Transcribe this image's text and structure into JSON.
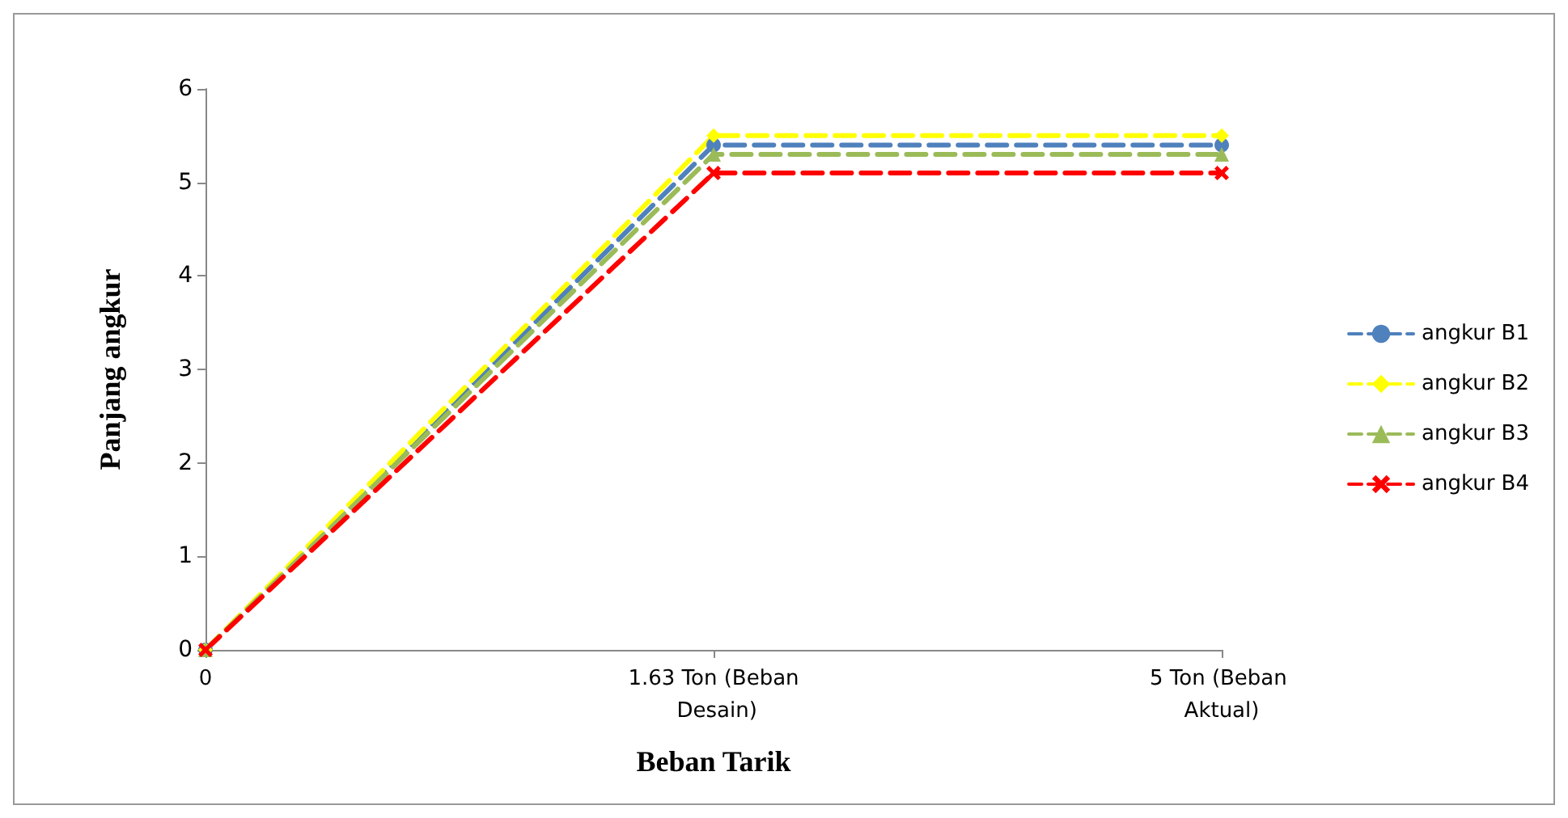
{
  "chart_data": {
    "type": "line",
    "xlabel": "Beban Tarik",
    "ylabel": "Panjang angkur",
    "categories": [
      "0",
      "1.63 Ton (Beban Desain)",
      "5 Ton (Beban Aktual)"
    ],
    "series": [
      {
        "name": "angkur B1",
        "color": "#4f81bd",
        "values": [
          0,
          5.4,
          5.4
        ],
        "marker": "circle"
      },
      {
        "name": "angkur B2",
        "color": "#ffff00",
        "values": [
          0,
          5.5,
          5.5
        ],
        "marker": "diamond"
      },
      {
        "name": "angkur B3",
        "color": "#9bbb59",
        "values": [
          0,
          5.3,
          5.3
        ],
        "marker": "triangle"
      },
      {
        "name": "angkur B4",
        "color": "#ff0000",
        "values": [
          0,
          5.1,
          5.1
        ],
        "marker": "cross"
      }
    ],
    "ylim": [
      0,
      6
    ],
    "yticks": [
      0,
      1,
      2,
      3,
      4,
      5,
      6
    ],
    "grid": false,
    "legend": "right",
    "line_style": "dashed"
  }
}
